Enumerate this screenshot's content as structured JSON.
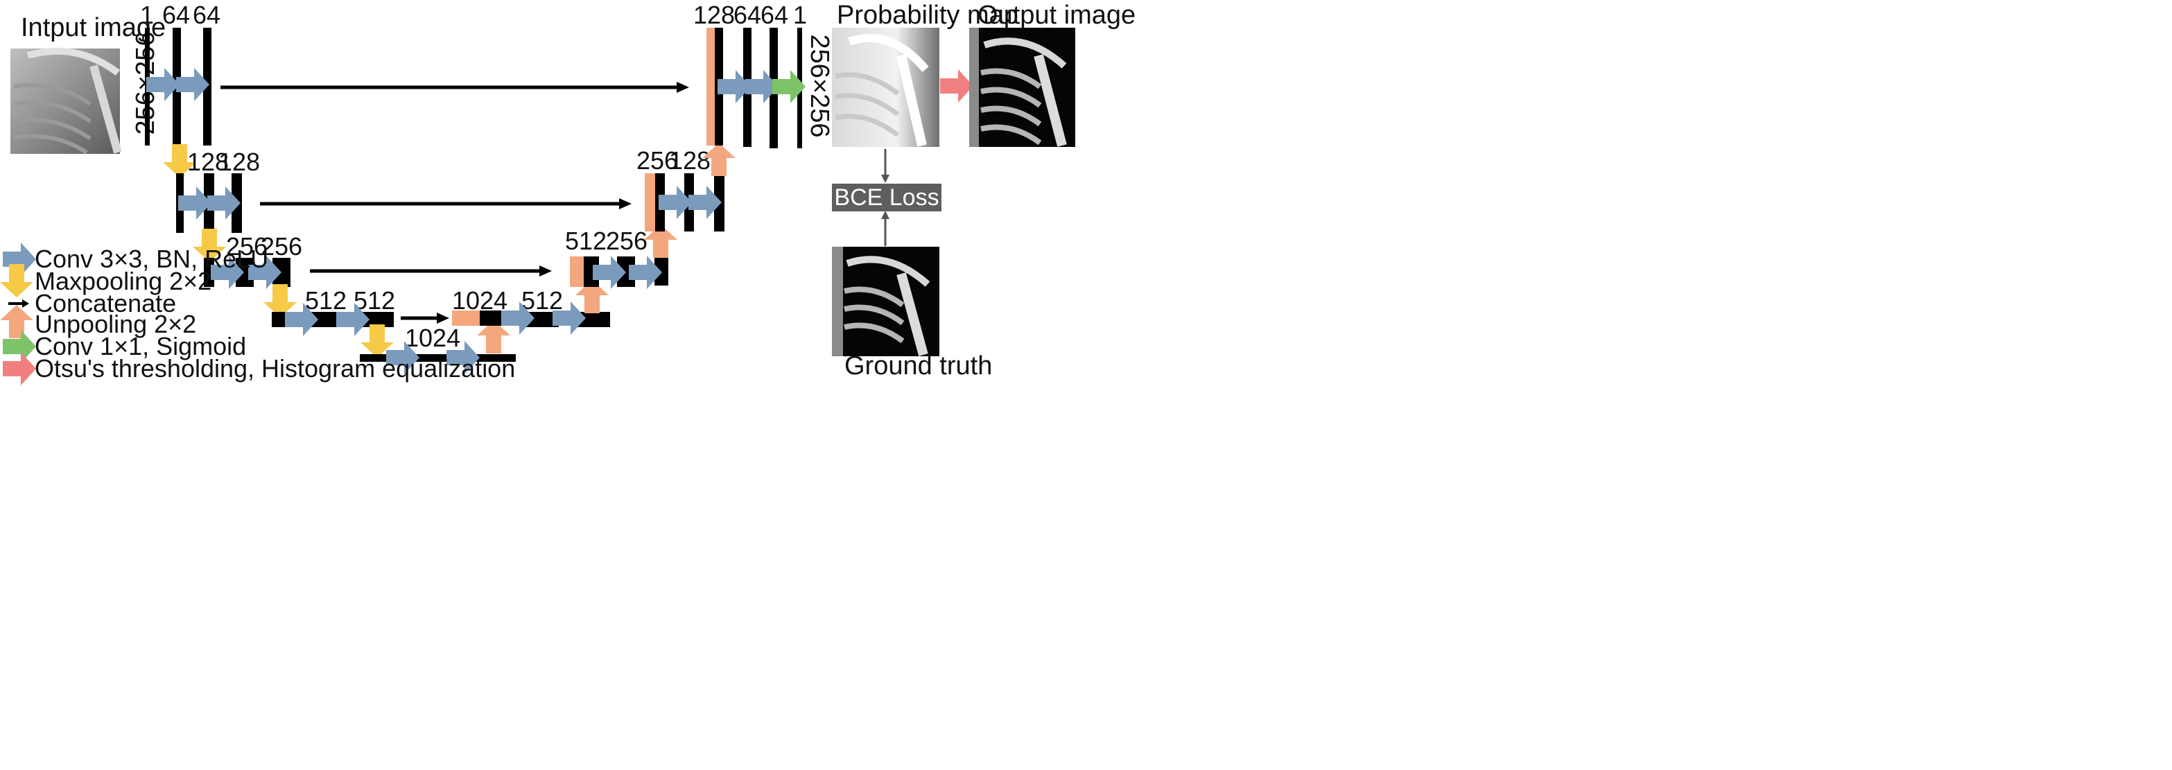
{
  "images": {
    "input": {
      "label": "Intput image"
    },
    "probability": {
      "label": "Probability map"
    },
    "output": {
      "label": "Output image"
    },
    "ground_truth": {
      "label": "Ground truth"
    }
  },
  "loss": {
    "label": "BCE Loss"
  },
  "dims": {
    "left": "256×256",
    "right": "256×256"
  },
  "channels": {
    "l1a": "1",
    "l1b": "64",
    "l1c": "64",
    "l2a": "128",
    "l2b": "128",
    "l3a": "256",
    "l3b": "256",
    "l4a": "512",
    "l4b": "512",
    "l5": "1024",
    "r4a": "1024",
    "r4b": "512",
    "r3a": "512",
    "r3b": "256",
    "r2a": "256",
    "r2b": "128",
    "r1a": "128",
    "r1b": "64",
    "r1c": "64",
    "r1d": "1"
  },
  "legend": [
    {
      "icon": "conv-arrow-icon",
      "label": "Conv 3×3, BN, ReLU"
    },
    {
      "icon": "maxpool-arrow-icon",
      "label": "Maxpooling 2×2"
    },
    {
      "icon": "concat-arrow-icon",
      "label": "Concatenate"
    },
    {
      "icon": "unpool-arrow-icon",
      "label": "Unpooling 2×2"
    },
    {
      "icon": "conv1x1-arrow-icon",
      "label": "Conv 1×1, Sigmoid"
    },
    {
      "icon": "otsu-arrow-icon",
      "label": "Otsu's thresholding, Histogram equalization"
    }
  ],
  "colors": {
    "conv": "#7b9bbd",
    "maxpool": "#f6c946",
    "concat": "#000000",
    "unpool": "#f4a77f",
    "sigmoid": "#7cc36a",
    "otsu": "#f08080",
    "block": "#000000",
    "copied": "#f4a77f",
    "loss_box": "#5e5e5e"
  }
}
